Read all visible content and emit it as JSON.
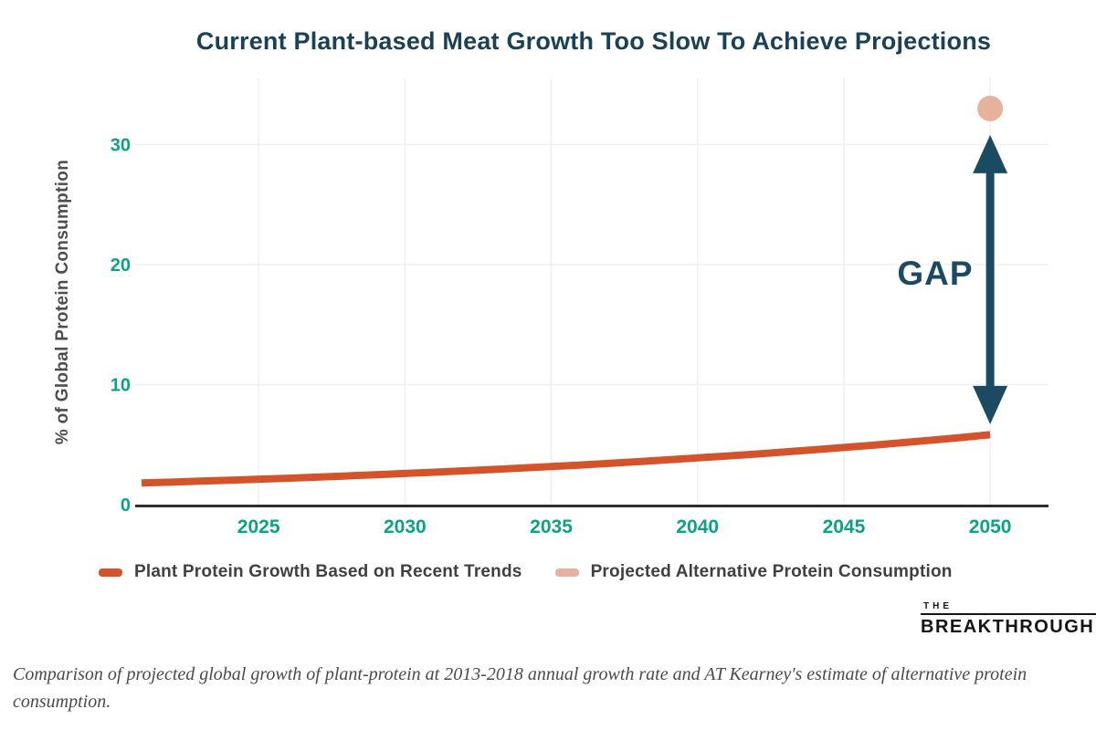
{
  "chart_data": {
    "type": "line",
    "title": "Current Plant-based Meat Growth Too Slow To Achieve Projections",
    "xlabel": "",
    "ylabel": "% of Global Protein Consumption",
    "x_ticks": [
      2025,
      2030,
      2035,
      2040,
      2045,
      2050
    ],
    "y_ticks": [
      0,
      10,
      20,
      30
    ],
    "xlim": [
      2021,
      2051.9
    ],
    "ylim": [
      0,
      35.5
    ],
    "grid": true,
    "legend_position": "bottom",
    "series": [
      {
        "name": "Plant Protein Growth Based on Recent Trends",
        "type": "line",
        "color": "#d4532a",
        "x": [
          2021,
          2022,
          2023,
          2024,
          2025,
          2026,
          2027,
          2028,
          2029,
          2030,
          2031,
          2032,
          2033,
          2034,
          2035,
          2036,
          2037,
          2038,
          2039,
          2040,
          2041,
          2042,
          2043,
          2044,
          2045,
          2046,
          2047,
          2048,
          2049,
          2050
        ],
        "y": [
          1.8,
          1.87,
          1.95,
          2.03,
          2.12,
          2.2,
          2.29,
          2.39,
          2.49,
          2.59,
          2.7,
          2.81,
          2.93,
          3.05,
          3.17,
          3.3,
          3.44,
          3.58,
          3.73,
          3.89,
          4.05,
          4.21,
          4.39,
          4.57,
          4.76,
          4.95,
          5.16,
          5.37,
          5.59,
          5.82
        ]
      },
      {
        "name": "Projected Alternative Protein Consumption",
        "type": "scatter",
        "color": "#e6b29d",
        "x": [
          2050
        ],
        "y": [
          33
        ]
      }
    ],
    "annotations": [
      {
        "type": "double-arrow",
        "x": 2050,
        "y_from": 6.7,
        "y_to": 30.8,
        "color": "#1d4a63"
      },
      {
        "type": "label",
        "label": "GAP",
        "x": 2048,
        "y": 19,
        "color": "#1d4a63"
      }
    ]
  },
  "colors": {
    "title": "#1b4157",
    "tick": "#0ba287",
    "axis": "#2e2e2e",
    "grid": "#f0f0f0",
    "ylabel": "#4d4d4d",
    "legend_text": "#404040",
    "caption": "#4a4a4a",
    "logo": "#141414"
  },
  "logo": {
    "line1": "THE",
    "line2": "BREAKTHROUGH"
  },
  "caption": "Comparison of projected global growth of plant-protein at 2013-2018 annual growth rate and AT Kearney's estimate of alternative protein consumption."
}
